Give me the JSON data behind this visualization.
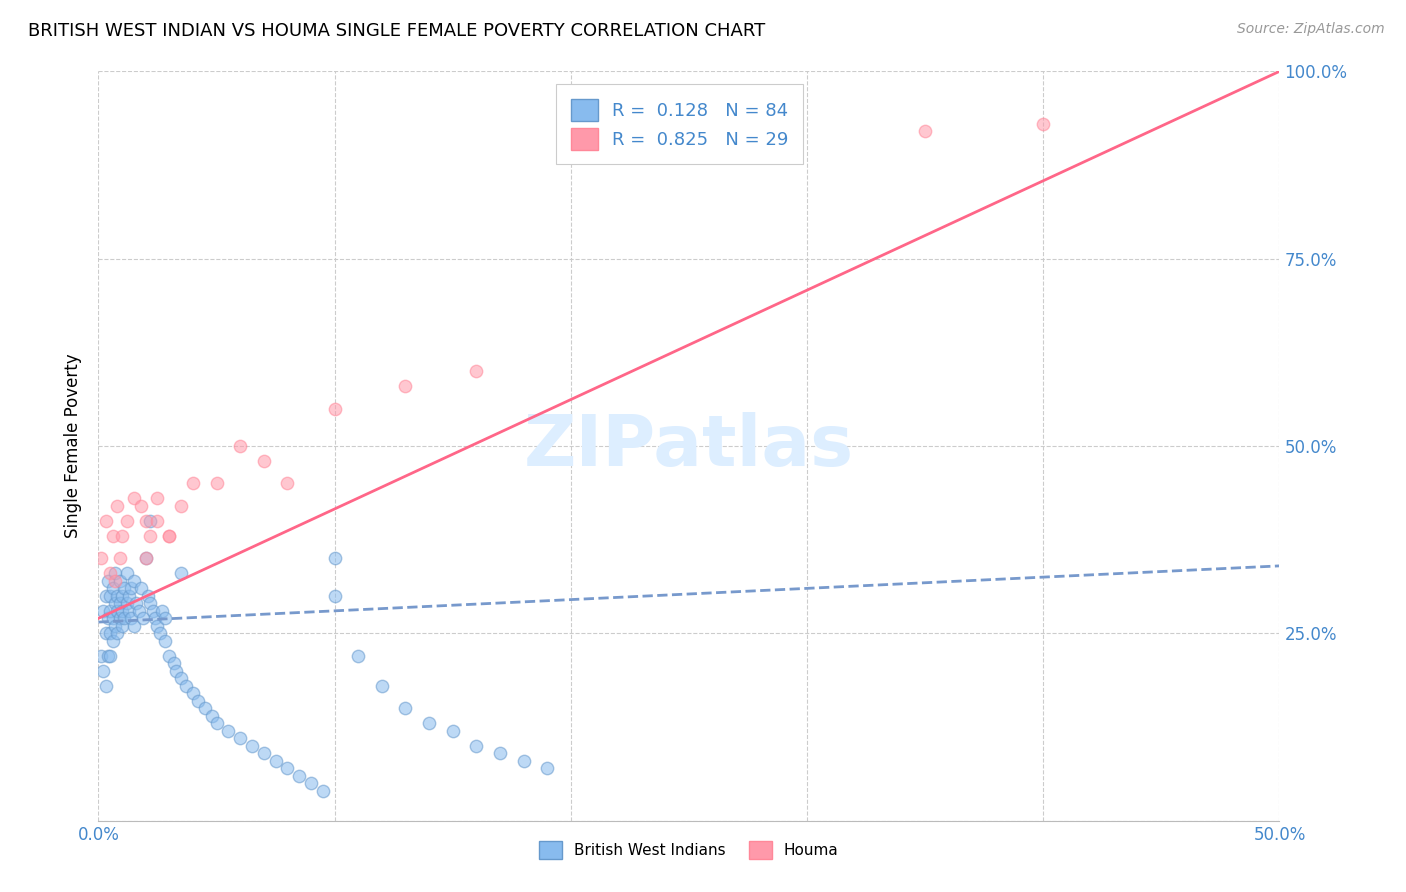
{
  "title": "BRITISH WEST INDIAN VS HOUMA SINGLE FEMALE POVERTY CORRELATION CHART",
  "source": "Source: ZipAtlas.com",
  "ylabel": "Single Female Poverty",
  "watermark": "ZIPatlas",
  "R_bwi": 0.128,
  "N_bwi": 84,
  "R_houma": 0.825,
  "N_houma": 29,
  "xlim": [
    0.0,
    0.5
  ],
  "ylim": [
    0.0,
    1.0
  ],
  "xticks": [
    0.0,
    0.1,
    0.2,
    0.3,
    0.4,
    0.5
  ],
  "xticklabels": [
    "0.0%",
    "",
    "",
    "",
    "",
    "50.0%"
  ],
  "yticks": [
    0.0,
    0.25,
    0.5,
    0.75,
    1.0
  ],
  "yticklabels_right": [
    "",
    "25.0%",
    "50.0%",
    "75.0%",
    "100.0%"
  ],
  "color_bwi": "#88BBEE",
  "color_houma": "#FF99AA",
  "line_color_bwi": "#7799CC",
  "line_color_houma": "#FF6688",
  "background_color": "#FFFFFF",
  "title_fontsize": 13,
  "axis_label_fontsize": 12,
  "tick_fontsize": 12,
  "legend_fontsize": 13,
  "source_fontsize": 10,
  "watermark_color": "#DDEEFF",
  "grid_color": "#CCCCCC",
  "scatter_size": 80,
  "scatter_alpha": 0.55,
  "scatter_linewidth": 1.0,
  "scatter_edgecolor_bwi": "#6699CC",
  "scatter_edgecolor_houma": "#FF8899",
  "bwi_x": [
    0.001,
    0.002,
    0.002,
    0.003,
    0.003,
    0.003,
    0.004,
    0.004,
    0.004,
    0.005,
    0.005,
    0.005,
    0.005,
    0.006,
    0.006,
    0.006,
    0.007,
    0.007,
    0.007,
    0.008,
    0.008,
    0.008,
    0.009,
    0.009,
    0.009,
    0.01,
    0.01,
    0.01,
    0.011,
    0.011,
    0.012,
    0.012,
    0.013,
    0.013,
    0.014,
    0.014,
    0.015,
    0.015,
    0.016,
    0.017,
    0.018,
    0.019,
    0.02,
    0.021,
    0.022,
    0.023,
    0.024,
    0.025,
    0.026,
    0.027,
    0.028,
    0.03,
    0.032,
    0.033,
    0.035,
    0.037,
    0.04,
    0.042,
    0.045,
    0.048,
    0.05,
    0.055,
    0.06,
    0.065,
    0.07,
    0.075,
    0.08,
    0.085,
    0.09,
    0.095,
    0.1,
    0.11,
    0.12,
    0.13,
    0.14,
    0.15,
    0.16,
    0.17,
    0.18,
    0.19,
    0.022,
    0.028,
    0.035,
    0.1
  ],
  "bwi_y": [
    0.22,
    0.28,
    0.2,
    0.25,
    0.3,
    0.18,
    0.27,
    0.22,
    0.32,
    0.25,
    0.3,
    0.28,
    0.22,
    0.27,
    0.31,
    0.24,
    0.29,
    0.33,
    0.26,
    0.3,
    0.28,
    0.25,
    0.27,
    0.32,
    0.29,
    0.3,
    0.28,
    0.26,
    0.27,
    0.31,
    0.29,
    0.33,
    0.28,
    0.3,
    0.27,
    0.31,
    0.26,
    0.32,
    0.29,
    0.28,
    0.31,
    0.27,
    0.35,
    0.3,
    0.29,
    0.28,
    0.27,
    0.26,
    0.25,
    0.28,
    0.24,
    0.22,
    0.21,
    0.2,
    0.19,
    0.18,
    0.17,
    0.16,
    0.15,
    0.14,
    0.13,
    0.12,
    0.11,
    0.1,
    0.09,
    0.08,
    0.07,
    0.06,
    0.05,
    0.04,
    0.35,
    0.22,
    0.18,
    0.15,
    0.13,
    0.12,
    0.1,
    0.09,
    0.08,
    0.07,
    0.4,
    0.27,
    0.33,
    0.3
  ],
  "houma_x": [
    0.001,
    0.003,
    0.005,
    0.006,
    0.007,
    0.008,
    0.009,
    0.01,
    0.012,
    0.015,
    0.018,
    0.02,
    0.022,
    0.025,
    0.03,
    0.035,
    0.04,
    0.05,
    0.06,
    0.07,
    0.08,
    0.1,
    0.13,
    0.16,
    0.02,
    0.025,
    0.03,
    0.35,
    0.4
  ],
  "houma_y": [
    0.35,
    0.4,
    0.33,
    0.38,
    0.32,
    0.42,
    0.35,
    0.38,
    0.4,
    0.43,
    0.42,
    0.4,
    0.38,
    0.43,
    0.38,
    0.42,
    0.45,
    0.45,
    0.5,
    0.48,
    0.45,
    0.55,
    0.58,
    0.6,
    0.35,
    0.4,
    0.38,
    0.92,
    0.93
  ],
  "bwi_line_x": [
    0.0,
    0.5
  ],
  "bwi_line_y": [
    0.265,
    0.34
  ],
  "houma_line_x": [
    0.0,
    0.5
  ],
  "houma_line_y": [
    0.27,
    1.0
  ]
}
